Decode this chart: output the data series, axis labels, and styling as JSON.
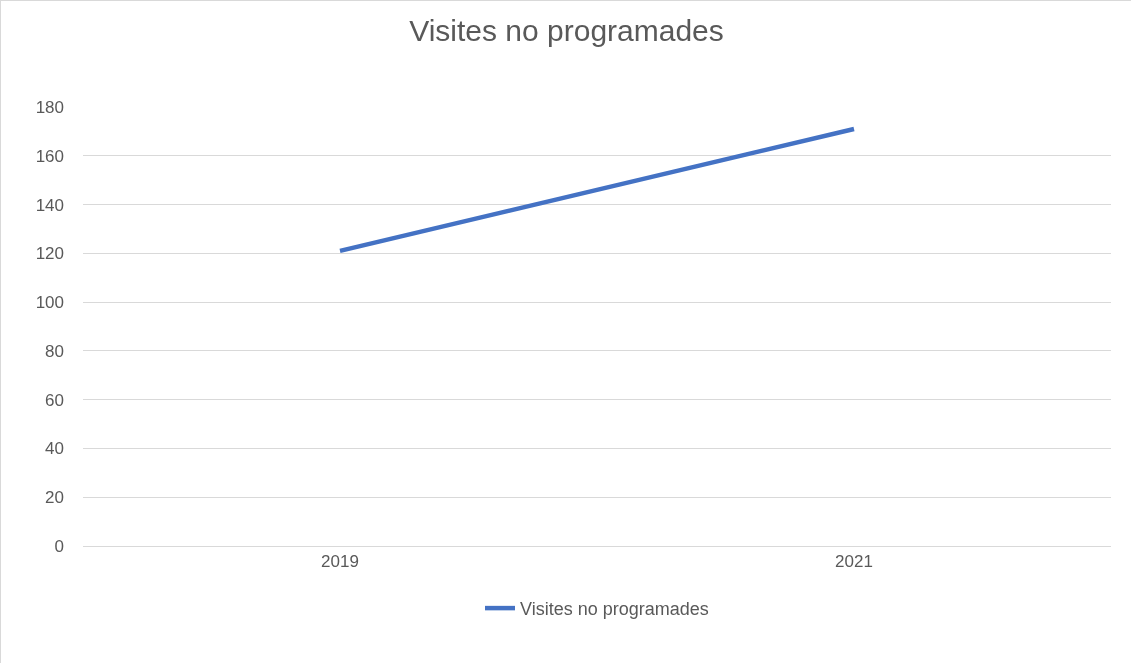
{
  "chart_data": {
    "type": "line",
    "title": "Visites no programades",
    "categories": [
      "2019",
      "2021"
    ],
    "series": [
      {
        "name": "Visites no programades",
        "color": "#4472c4",
        "values": [
          121,
          171
        ]
      }
    ],
    "ylim": [
      0,
      180
    ],
    "yticks": [
      0,
      20,
      40,
      60,
      80,
      100,
      120,
      140,
      160,
      180
    ],
    "grid": "y",
    "legend": "bottom",
    "marker": "none",
    "line_style": "solid"
  }
}
